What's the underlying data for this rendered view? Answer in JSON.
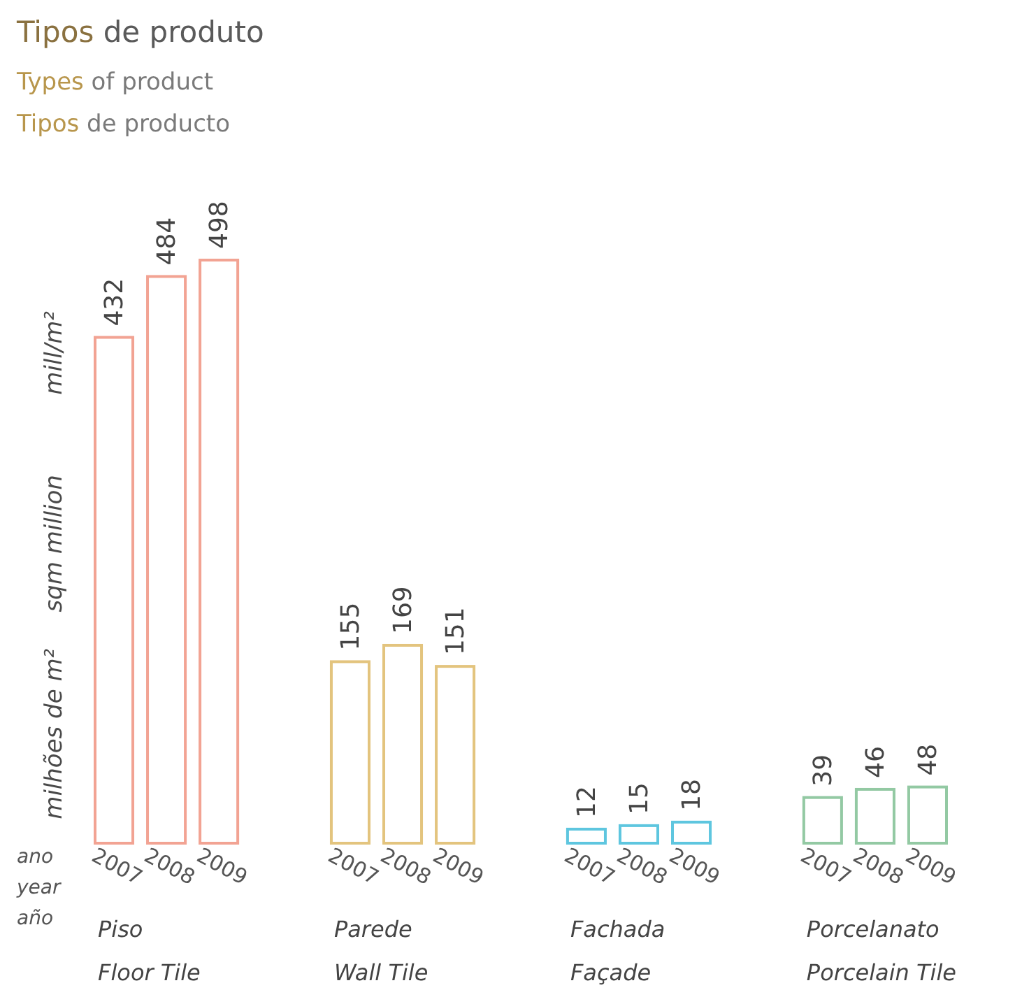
{
  "chart_data": [
    {
      "type": "bar",
      "title": "Tipos de produto",
      "subtitle": "Types of product\nTipos de producto",
      "ylabel": "milhões de m²\nsqm million\nmill/m²",
      "annotations": [
        "ano\nyear\naño"
      ],
      "xlabel": "Piso\nFloor Tile",
      "categories": [
        "2007",
        "2008",
        "2009"
      ],
      "values": [
        432,
        484,
        498
      ],
      "color": "#f2a393",
      "data_labels": true
    },
    {
      "type": "bar",
      "xlabel": "Parede\nWall Tile",
      "categories": [
        "2007",
        "2008",
        "2009"
      ],
      "values": [
        155,
        169,
        151
      ],
      "color": "#e3c47e",
      "data_labels": true
    },
    {
      "type": "bar",
      "xlabel": "Fachada\nFaçade",
      "categories": [
        "2007",
        "2008",
        "2009"
      ],
      "values": [
        12,
        15,
        18
      ],
      "color": "#5ec6df",
      "data_labels": true
    },
    {
      "type": "bar",
      "xlabel": "Porcelanato\nPorcelain Tile",
      "categories": [
        "2007",
        "2008",
        "2009"
      ],
      "values": [
        39,
        46,
        48
      ],
      "color": "#93c9a3",
      "data_labels": true
    }
  ]
}
